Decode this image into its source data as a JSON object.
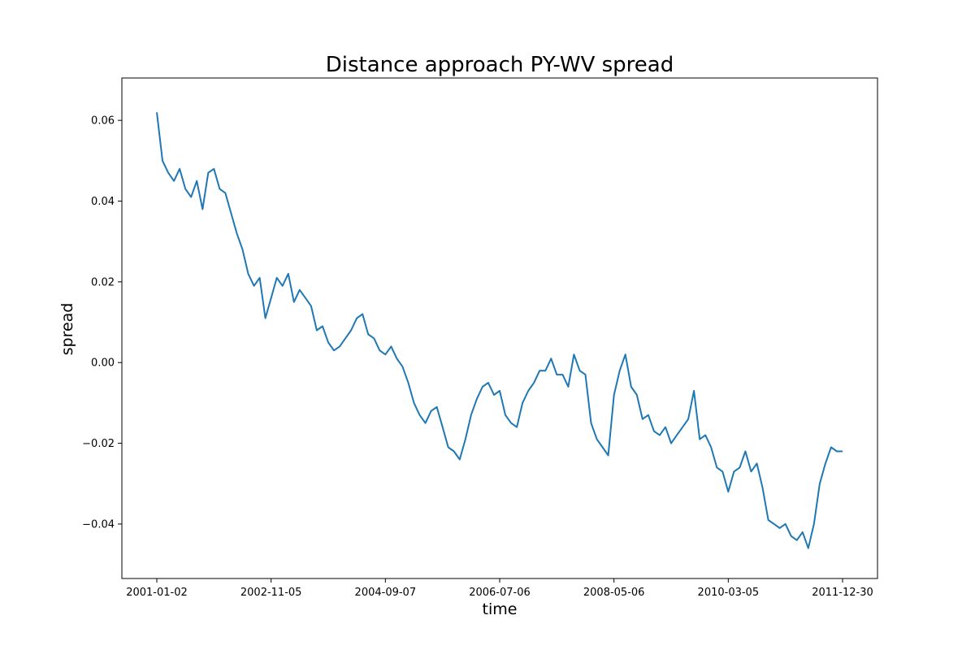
{
  "chart_data": {
    "type": "line",
    "title": "Distance approach PY-WV spread",
    "xlabel": "time",
    "ylabel": "spread",
    "x_tick_labels": [
      "2001-01-02",
      "2002-11-05",
      "2004-09-07",
      "2006-07-06",
      "2008-05-06",
      "2010-03-05",
      "2011-12-30"
    ],
    "x_range": [
      0,
      6
    ],
    "y_ticks": [
      -0.04,
      -0.02,
      0.0,
      0.02,
      0.04,
      0.06
    ],
    "y_tick_labels": [
      "−0.04",
      "−0.02",
      "0.00",
      "0.02",
      "0.04",
      "0.06"
    ],
    "ylim": [
      -0.0535,
      0.0705
    ],
    "grid": false,
    "series": [
      {
        "name": "spread",
        "color": "#1f77b4",
        "x": [
          0.0,
          0.05,
          0.1,
          0.15,
          0.2,
          0.25,
          0.3,
          0.35,
          0.4,
          0.45,
          0.5,
          0.55,
          0.6,
          0.65,
          0.7,
          0.75,
          0.8,
          0.85,
          0.9,
          0.95,
          1.0,
          1.05,
          1.1,
          1.15,
          1.2,
          1.25,
          1.3,
          1.35,
          1.4,
          1.45,
          1.5,
          1.55,
          1.6,
          1.65,
          1.7,
          1.75,
          1.8,
          1.85,
          1.9,
          1.95,
          2.0,
          2.05,
          2.1,
          2.15,
          2.2,
          2.25,
          2.3,
          2.35,
          2.4,
          2.45,
          2.5,
          2.55,
          2.6,
          2.65,
          2.7,
          2.75,
          2.8,
          2.85,
          2.9,
          2.95,
          3.0,
          3.05,
          3.1,
          3.15,
          3.2,
          3.25,
          3.3,
          3.35,
          3.4,
          3.45,
          3.5,
          3.55,
          3.6,
          3.65,
          3.7,
          3.75,
          3.8,
          3.85,
          3.9,
          3.95,
          4.0,
          4.05,
          4.1,
          4.15,
          4.2,
          4.25,
          4.3,
          4.35,
          4.4,
          4.45,
          4.5,
          4.55,
          4.6,
          4.65,
          4.7,
          4.75,
          4.8,
          4.85,
          4.9,
          4.95,
          5.0,
          5.05,
          5.1,
          5.15,
          5.2,
          5.25,
          5.3,
          5.35,
          5.4,
          5.45,
          5.5,
          5.55,
          5.6,
          5.65,
          5.7,
          5.75,
          5.8,
          5.85,
          5.9,
          5.95,
          6.0
        ],
        "values": [
          0.062,
          0.05,
          0.047,
          0.045,
          0.048,
          0.043,
          0.041,
          0.045,
          0.038,
          0.047,
          0.048,
          0.043,
          0.042,
          0.037,
          0.032,
          0.028,
          0.022,
          0.019,
          0.021,
          0.011,
          0.016,
          0.021,
          0.019,
          0.022,
          0.015,
          0.018,
          0.016,
          0.014,
          0.008,
          0.009,
          0.005,
          0.003,
          0.004,
          0.006,
          0.008,
          0.011,
          0.012,
          0.007,
          0.006,
          0.003,
          0.002,
          0.004,
          0.001,
          -0.001,
          -0.005,
          -0.01,
          -0.013,
          -0.015,
          -0.012,
          -0.011,
          -0.016,
          -0.021,
          -0.022,
          -0.024,
          -0.019,
          -0.013,
          -0.009,
          -0.006,
          -0.005,
          -0.008,
          -0.007,
          -0.013,
          -0.015,
          -0.016,
          -0.01,
          -0.007,
          -0.005,
          -0.002,
          -0.002,
          0.001,
          -0.003,
          -0.003,
          -0.006,
          0.002,
          -0.002,
          -0.003,
          -0.015,
          -0.019,
          -0.021,
          -0.023,
          -0.008,
          -0.002,
          0.002,
          -0.006,
          -0.008,
          -0.014,
          -0.013,
          -0.017,
          -0.018,
          -0.016,
          -0.02,
          -0.018,
          -0.016,
          -0.014,
          -0.007,
          -0.019,
          -0.018,
          -0.021,
          -0.026,
          -0.027,
          -0.032,
          -0.027,
          -0.026,
          -0.022,
          -0.027,
          -0.025,
          -0.031,
          -0.039,
          -0.04,
          -0.041,
          -0.04,
          -0.043,
          -0.044,
          -0.042,
          -0.046,
          -0.04,
          -0.03,
          -0.025,
          -0.021,
          -0.022,
          -0.022
        ]
      }
    ]
  }
}
